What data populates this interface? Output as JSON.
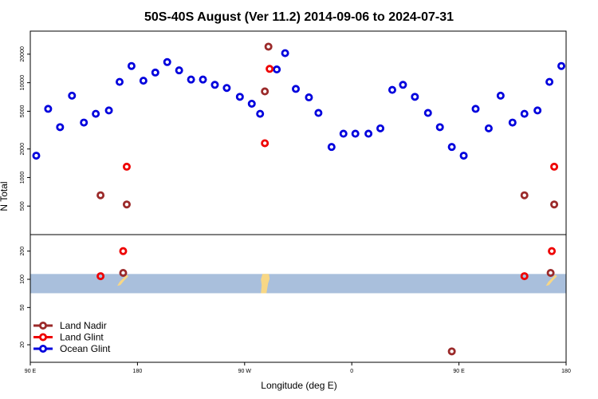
{
  "chart_data": {
    "type": "scatter",
    "title": "50S-40S August (Ver 11.2)   2014-09-06 to 2024-07-31",
    "xlabel": "Longitude (deg E)",
    "ylabel": "N Total",
    "x_ticks": [
      {
        "value": 90,
        "label": "90 E"
      },
      {
        "value": 180,
        "label": "180"
      },
      {
        "value": 270,
        "label": "90 W"
      },
      {
        "value": 360,
        "label": "0"
      },
      {
        "value": 450,
        "label": "90 E"
      },
      {
        "value": 540,
        "label": "180"
      }
    ],
    "xlim": [
      90,
      540
    ],
    "y_scale": "log",
    "top_panel": {
      "ylim": [
        250,
        35000
      ],
      "y_ticks": [
        {
          "value": 500,
          "label": "500"
        },
        {
          "value": 1000,
          "label": "1000"
        },
        {
          "value": 2000,
          "label": "2000"
        },
        {
          "value": 5000,
          "label": "5000"
        },
        {
          "value": 10000,
          "label": "10000"
        },
        {
          "value": 20000,
          "label": "20000"
        }
      ]
    },
    "bottom_panel": {
      "ylim": [
        13,
        300
      ],
      "y_ticks": [
        {
          "value": 20,
          "label": "20"
        },
        {
          "value": 50,
          "label": "50"
        },
        {
          "value": 100,
          "label": "100"
        },
        {
          "value": 200,
          "label": "200"
        }
      ],
      "band": {
        "lat_range": [
          -50,
          -40
        ],
        "color": "#a9bfdc"
      },
      "land_color": "#f8d785"
    },
    "legend": {
      "placement": "bottom-left",
      "entries": [
        {
          "name": "Land Nadir",
          "color": "#9b2a2a"
        },
        {
          "name": "Land Glint",
          "color": "#ee0000"
        },
        {
          "name": "Ocean Glint",
          "color": "#0000dd"
        }
      ]
    },
    "series": [
      {
        "name": "Ocean Glint",
        "color": "#0000dd",
        "points": [
          [
            95,
            1700
          ],
          [
            105,
            5300
          ],
          [
            115,
            3400
          ],
          [
            125,
            7300
          ],
          [
            135,
            3800
          ],
          [
            145,
            4700
          ],
          [
            156,
            5100
          ],
          [
            165,
            10200
          ],
          [
            175,
            15000
          ],
          [
            185,
            10500
          ],
          [
            195,
            12800
          ],
          [
            205,
            16500
          ],
          [
            215,
            13500
          ],
          [
            225,
            10800
          ],
          [
            235,
            10800
          ],
          [
            245,
            9500
          ],
          [
            255,
            8800
          ],
          [
            266,
            7100
          ],
          [
            276,
            6000
          ],
          [
            283,
            4700
          ],
          [
            297,
            13800
          ],
          [
            304,
            20500
          ],
          [
            313,
            8600
          ],
          [
            324,
            7000
          ],
          [
            332,
            4800
          ],
          [
            343,
            2100
          ],
          [
            353,
            2900
          ],
          [
            363,
            2900
          ],
          [
            374,
            2900
          ],
          [
            384,
            3300
          ],
          [
            394,
            8400
          ],
          [
            403,
            9500
          ],
          [
            413,
            7100
          ],
          [
            424,
            4800
          ],
          [
            434,
            3400
          ],
          [
            444,
            2100
          ],
          [
            454,
            1700
          ],
          [
            464,
            5300
          ],
          [
            475,
            3300
          ],
          [
            485,
            7300
          ],
          [
            495,
            3800
          ],
          [
            505,
            4700
          ],
          [
            516,
            5100
          ],
          [
            526,
            10200
          ],
          [
            536,
            15000
          ]
        ]
      },
      {
        "name": "Land Glint",
        "color": "#ee0000",
        "points": [
          [
            149,
            108
          ],
          [
            171,
            1300
          ],
          [
            168,
            200
          ],
          [
            287,
            2300
          ],
          [
            291,
            14000
          ],
          [
            505,
            108
          ],
          [
            530,
            1300
          ],
          [
            528,
            200
          ]
        ]
      },
      {
        "name": "Land Nadir",
        "color": "#9b2a2a",
        "points": [
          [
            149,
            650
          ],
          [
            171,
            520
          ],
          [
            168,
            117
          ],
          [
            287,
            8100
          ],
          [
            290,
            24000
          ],
          [
            505,
            650
          ],
          [
            530,
            520
          ],
          [
            527,
            117
          ],
          [
            444,
            17
          ]
        ]
      }
    ]
  }
}
